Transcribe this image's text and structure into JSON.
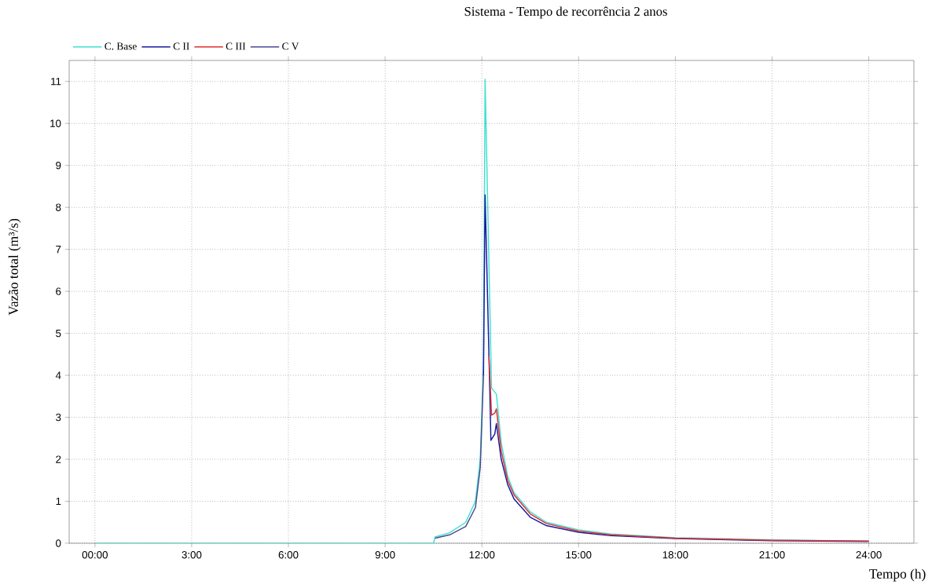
{
  "chart_data": {
    "type": "line",
    "title": "Sistema -  Tempo de recorrência 2 anos",
    "xlabel": "Tempo (h)",
    "ylabel": "Vazão total (m³/s)",
    "xlim": [
      -0.8,
      25.4
    ],
    "ylim": [
      0,
      11.5
    ],
    "xticks": [
      {
        "value": 0,
        "label": "00:00"
      },
      {
        "value": 3,
        "label": "3:00"
      },
      {
        "value": 6,
        "label": "6:00"
      },
      {
        "value": 9,
        "label": "9:00"
      },
      {
        "value": 12,
        "label": "12:00"
      },
      {
        "value": 15,
        "label": "15:00"
      },
      {
        "value": 18,
        "label": "18:00"
      },
      {
        "value": 21,
        "label": "21:00"
      },
      {
        "value": 24,
        "label": "24:00"
      }
    ],
    "yticks": [
      0,
      1,
      2,
      3,
      4,
      5,
      6,
      7,
      8,
      9,
      10,
      11
    ],
    "grid": true,
    "legend": "top left",
    "line_style": "solid",
    "series": [
      {
        "name": "C. Base",
        "color": "#40e0d0",
        "x": [
          0,
          10.5,
          10.55,
          11,
          11.5,
          11.8,
          11.95,
          12.05,
          12.1,
          12.3,
          12.45,
          12.6,
          12.8,
          13,
          13.5,
          14,
          15,
          16,
          18,
          21,
          24
        ],
        "values": [
          0,
          0,
          0.15,
          0.25,
          0.5,
          1.0,
          2.0,
          4.3,
          11.05,
          3.7,
          3.55,
          2.4,
          1.6,
          1.2,
          0.75,
          0.5,
          0.32,
          0.22,
          0.13,
          0.08,
          0.05
        ]
      },
      {
        "name": "C II",
        "color": "#1a1aa0",
        "x": [
          12.05,
          12.1,
          12.25,
          12.28,
          12.4,
          12.45,
          12.6,
          12.8,
          13,
          13.5,
          14,
          15,
          16,
          18,
          21,
          24
        ],
        "values": [
          4.0,
          8.3,
          3.5,
          2.45,
          2.6,
          2.85,
          2.0,
          1.4,
          1.05,
          0.62,
          0.42,
          0.26,
          0.18,
          0.11,
          0.06,
          0.04
        ]
      },
      {
        "name": "C III",
        "color": "#e03030",
        "x": [
          12.22,
          12.3,
          12.4,
          12.45,
          12.6,
          12.8,
          13,
          13.5,
          14,
          15,
          16,
          18,
          21,
          24
        ],
        "values": [
          4.46,
          3.05,
          3.1,
          3.2,
          2.2,
          1.5,
          1.15,
          0.7,
          0.47,
          0.29,
          0.2,
          0.12,
          0.07,
          0.05
        ]
      },
      {
        "name": "C V",
        "color": "#4a4a90",
        "x": [
          10.55,
          11,
          11.5,
          11.8,
          11.95,
          12.05
        ],
        "values": [
          0.12,
          0.2,
          0.4,
          0.85,
          1.8,
          4.0
        ]
      }
    ]
  }
}
